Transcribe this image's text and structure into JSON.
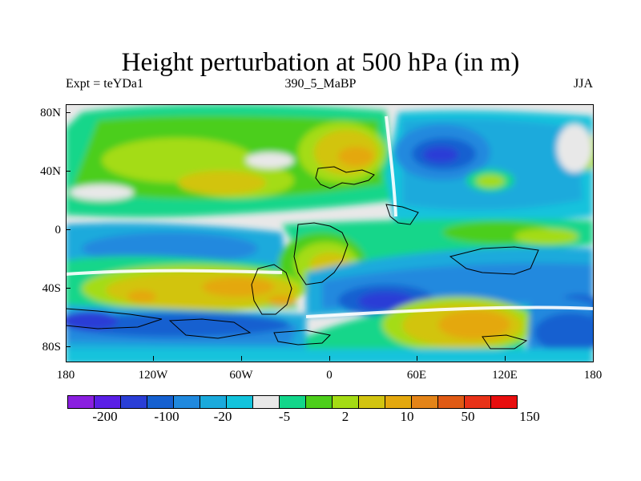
{
  "title": "Height perturbation at 500 hPa (in m)",
  "subtitle_left": "Expt = teYDa1",
  "subtitle_center": "390_5_MaBP",
  "subtitle_right": "JJA",
  "y_axis": {
    "labels": [
      "80N",
      "40N",
      "0",
      "40S",
      "80S"
    ]
  },
  "x_axis": {
    "labels": [
      "180",
      "120W",
      "60W",
      "0",
      "60E",
      "120E",
      "180"
    ]
  },
  "colorbar": {
    "colors": [
      "#8a1fe0",
      "#5a1fe6",
      "#2a3ed6",
      "#1560d0",
      "#2089de",
      "#1aaadc",
      "#12c3dc",
      "#e8e8e8",
      "#12d68a",
      "#4cce1a",
      "#a4dc14",
      "#d2c410",
      "#e4a80e",
      "#e48418",
      "#e05a14",
      "#e83218",
      "#e80e0e"
    ],
    "labels": [
      "-200",
      "-100",
      "-20",
      "-5",
      "2",
      "10",
      "50",
      "150"
    ]
  }
}
